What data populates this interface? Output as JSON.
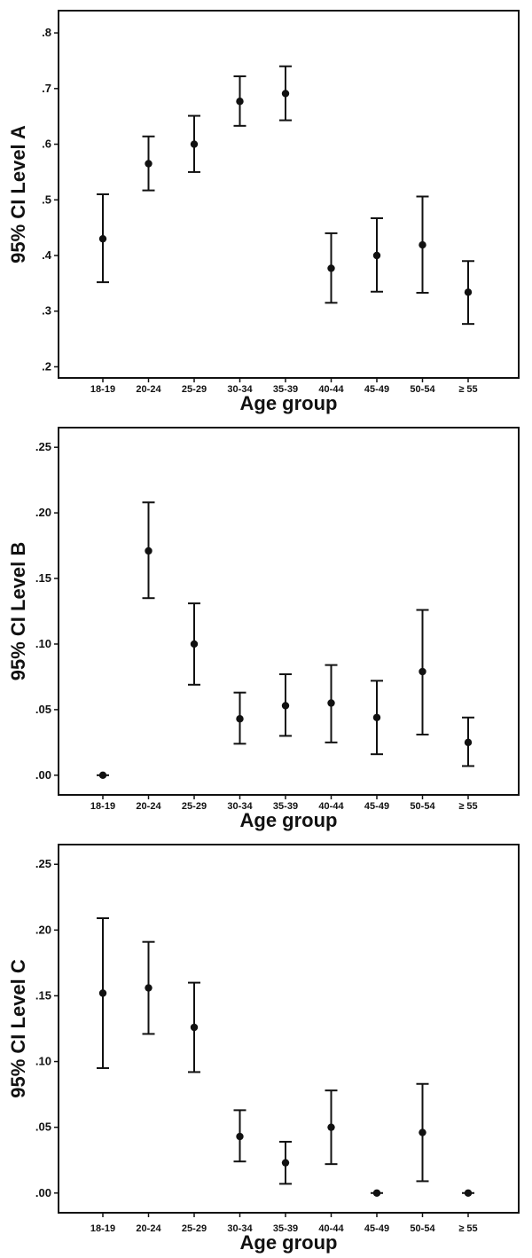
{
  "chart_data": [
    {
      "type": "scatter",
      "xlabel": "Age group",
      "ylabel": "95% CI Level A",
      "categories": [
        "18-19",
        "20-24",
        "25-29",
        "30-34",
        "35-39",
        "40-44",
        "45-49",
        "50-54",
        "≥ 55"
      ],
      "yticks": [
        ".2",
        ".3",
        ".4",
        ".5",
        ".6",
        ".7",
        ".8"
      ],
      "ytick_values": [
        0.2,
        0.3,
        0.4,
        0.5,
        0.6,
        0.7,
        0.8
      ],
      "ylim": [
        0.18,
        0.84
      ],
      "mean": [
        0.43,
        0.565,
        0.6,
        0.677,
        0.691,
        0.377,
        0.4,
        0.419,
        0.334
      ],
      "lower": [
        0.352,
        0.517,
        0.55,
        0.633,
        0.643,
        0.315,
        0.335,
        0.333,
        0.277
      ],
      "upper": [
        0.51,
        0.614,
        0.651,
        0.722,
        0.74,
        0.44,
        0.467,
        0.506,
        0.39
      ]
    },
    {
      "type": "scatter",
      "xlabel": "Age group",
      "ylabel": "95% CI Level B",
      "categories": [
        "18-19",
        "20-24",
        "25-29",
        "30-34",
        "35-39",
        "40-44",
        "45-49",
        "50-54",
        "≥ 55"
      ],
      "yticks": [
        ".00",
        ".05",
        ".10",
        ".15",
        ".20",
        ".25"
      ],
      "ytick_values": [
        0.0,
        0.05,
        0.1,
        0.15,
        0.2,
        0.25
      ],
      "ylim": [
        -0.015,
        0.265
      ],
      "mean": [
        0.0,
        0.171,
        0.1,
        0.043,
        0.053,
        0.055,
        0.044,
        0.079,
        0.025
      ],
      "lower": [
        0.0,
        0.135,
        0.069,
        0.024,
        0.03,
        0.025,
        0.016,
        0.031,
        0.007
      ],
      "upper": [
        0.0,
        0.208,
        0.131,
        0.063,
        0.077,
        0.084,
        0.072,
        0.126,
        0.044
      ]
    },
    {
      "type": "scatter",
      "xlabel": "Age group",
      "ylabel": "95% CI Level C",
      "categories": [
        "18-19",
        "20-24",
        "25-29",
        "30-34",
        "35-39",
        "40-44",
        "45-49",
        "50-54",
        "≥ 55"
      ],
      "yticks": [
        ".00",
        ".05",
        ".10",
        ".15",
        ".20",
        ".25"
      ],
      "ytick_values": [
        0.0,
        0.05,
        0.1,
        0.15,
        0.2,
        0.25
      ],
      "ylim": [
        -0.015,
        0.265
      ],
      "mean": [
        0.152,
        0.156,
        0.126,
        0.043,
        0.023,
        0.05,
        0.0,
        0.046,
        0.0
      ],
      "lower": [
        0.095,
        0.121,
        0.092,
        0.024,
        0.007,
        0.022,
        0.0,
        0.009,
        0.0
      ],
      "upper": [
        0.209,
        0.191,
        0.16,
        0.063,
        0.039,
        0.078,
        0.0,
        0.083,
        0.0
      ]
    }
  ]
}
